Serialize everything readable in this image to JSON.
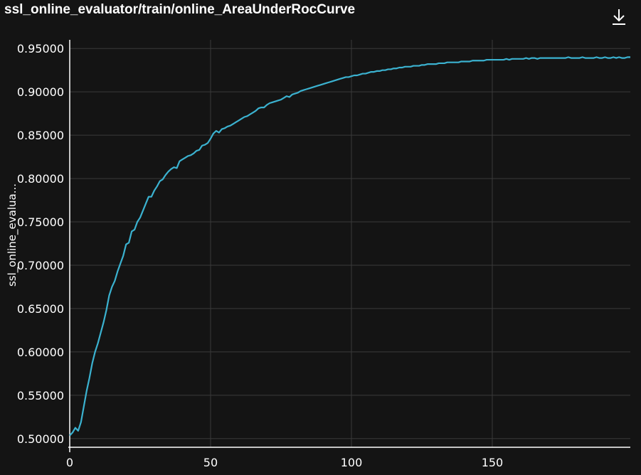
{
  "panel": {
    "title": "ssl_online_evaluator/train/online_AreaUnderRocCurve",
    "download_icon": "download-icon"
  },
  "colors": {
    "background": "#141414",
    "grid": "#3a3a3a",
    "axis": "#ffffff",
    "line": "#3bb2d0"
  },
  "chart_data": {
    "type": "line",
    "title": "ssl_online_evaluator/train/online_AreaUnderRocCurve",
    "xlabel": "",
    "ylabel": "ssl_online_evalua...",
    "xlim": [
      0,
      199
    ],
    "ylim": [
      0.49,
      0.96
    ],
    "x_ticks": [
      0,
      50,
      100,
      150
    ],
    "x_tick_labels": [
      "0",
      "50",
      "100",
      "150"
    ],
    "y_ticks": [
      0.5,
      0.55,
      0.6,
      0.65,
      0.7,
      0.75,
      0.8,
      0.85,
      0.9,
      0.95
    ],
    "y_tick_labels": [
      "0.50000",
      "0.55000",
      "0.60000",
      "0.65000",
      "0.70000",
      "0.75000",
      "0.80000",
      "0.85000",
      "0.90000",
      "0.95000"
    ],
    "grid": true,
    "series": [
      {
        "values": [
          [
            0,
            0.5035
          ],
          [
            1,
            0.507
          ],
          [
            2,
            0.5125
          ],
          [
            3,
            0.509
          ],
          [
            4,
            0.519
          ],
          [
            5,
            0.537
          ],
          [
            6,
            0.555
          ],
          [
            7,
            0.57
          ],
          [
            8,
            0.587
          ],
          [
            9,
            0.6
          ],
          [
            10,
            0.61
          ],
          [
            11,
            0.622
          ],
          [
            12,
            0.634
          ],
          [
            13,
            0.648
          ],
          [
            14,
            0.665
          ],
          [
            15,
            0.675
          ],
          [
            16,
            0.682
          ],
          [
            17,
            0.693
          ],
          [
            18,
            0.702
          ],
          [
            19,
            0.711
          ],
          [
            20,
            0.724
          ],
          [
            21,
            0.726
          ],
          [
            22,
            0.739
          ],
          [
            23,
            0.741
          ],
          [
            24,
            0.75
          ],
          [
            25,
            0.755
          ],
          [
            26,
            0.763
          ],
          [
            27,
            0.771
          ],
          [
            28,
            0.779
          ],
          [
            29,
            0.779
          ],
          [
            30,
            0.786
          ],
          [
            31,
            0.791
          ],
          [
            32,
            0.797
          ],
          [
            33,
            0.799
          ],
          [
            34,
            0.804
          ],
          [
            35,
            0.808
          ],
          [
            36,
            0.811
          ],
          [
            37,
            0.813
          ],
          [
            38,
            0.812
          ],
          [
            39,
            0.82
          ],
          [
            40,
            0.822
          ],
          [
            41,
            0.824
          ],
          [
            42,
            0.826
          ],
          [
            43,
            0.827
          ],
          [
            44,
            0.829
          ],
          [
            45,
            0.832
          ],
          [
            46,
            0.833
          ],
          [
            47,
            0.838
          ],
          [
            48,
            0.839
          ],
          [
            49,
            0.841
          ],
          [
            50,
            0.846
          ],
          [
            51,
            0.852
          ],
          [
            52,
            0.855
          ],
          [
            53,
            0.853
          ],
          [
            54,
            0.857
          ],
          [
            55,
            0.858
          ],
          [
            56,
            0.86
          ],
          [
            57,
            0.861
          ],
          [
            58,
            0.863
          ],
          [
            59,
            0.865
          ],
          [
            60,
            0.867
          ],
          [
            61,
            0.869
          ],
          [
            62,
            0.871
          ],
          [
            63,
            0.872
          ],
          [
            64,
            0.874
          ],
          [
            65,
            0.876
          ],
          [
            66,
            0.878
          ],
          [
            67,
            0.881
          ],
          [
            68,
            0.882
          ],
          [
            69,
            0.882
          ],
          [
            70,
            0.885
          ],
          [
            71,
            0.887
          ],
          [
            72,
            0.888
          ],
          [
            73,
            0.889
          ],
          [
            74,
            0.89
          ],
          [
            75,
            0.891
          ],
          [
            76,
            0.893
          ],
          [
            77,
            0.895
          ],
          [
            78,
            0.894
          ],
          [
            79,
            0.897
          ],
          [
            80,
            0.898
          ],
          [
            81,
            0.899
          ],
          [
            82,
            0.901
          ],
          [
            83,
            0.902
          ],
          [
            84,
            0.903
          ],
          [
            85,
            0.904
          ],
          [
            86,
            0.905
          ],
          [
            87,
            0.906
          ],
          [
            88,
            0.907
          ],
          [
            89,
            0.908
          ],
          [
            90,
            0.909
          ],
          [
            91,
            0.91
          ],
          [
            92,
            0.911
          ],
          [
            93,
            0.912
          ],
          [
            94,
            0.913
          ],
          [
            95,
            0.914
          ],
          [
            96,
            0.915
          ],
          [
            97,
            0.916
          ],
          [
            98,
            0.917
          ],
          [
            99,
            0.917
          ],
          [
            100,
            0.918
          ],
          [
            101,
            0.919
          ],
          [
            102,
            0.919
          ],
          [
            103,
            0.92
          ],
          [
            104,
            0.921
          ],
          [
            105,
            0.921
          ],
          [
            106,
            0.922
          ],
          [
            107,
            0.923
          ],
          [
            108,
            0.923
          ],
          [
            109,
            0.924
          ],
          [
            110,
            0.924
          ],
          [
            111,
            0.925
          ],
          [
            112,
            0.925
          ],
          [
            113,
            0.926
          ],
          [
            114,
            0.926
          ],
          [
            115,
            0.927
          ],
          [
            116,
            0.927
          ],
          [
            117,
            0.928
          ],
          [
            118,
            0.928
          ],
          [
            119,
            0.929
          ],
          [
            120,
            0.929
          ],
          [
            121,
            0.929
          ],
          [
            122,
            0.93
          ],
          [
            123,
            0.93
          ],
          [
            124,
            0.93
          ],
          [
            125,
            0.931
          ],
          [
            126,
            0.931
          ],
          [
            127,
            0.932
          ],
          [
            128,
            0.932
          ],
          [
            129,
            0.932
          ],
          [
            130,
            0.932
          ],
          [
            131,
            0.933
          ],
          [
            132,
            0.933
          ],
          [
            133,
            0.933
          ],
          [
            134,
            0.934
          ],
          [
            135,
            0.934
          ],
          [
            136,
            0.934
          ],
          [
            137,
            0.934
          ],
          [
            138,
            0.934
          ],
          [
            139,
            0.935
          ],
          [
            140,
            0.935
          ],
          [
            141,
            0.935
          ],
          [
            142,
            0.935
          ],
          [
            143,
            0.936
          ],
          [
            144,
            0.936
          ],
          [
            145,
            0.936
          ],
          [
            146,
            0.936
          ],
          [
            147,
            0.936
          ],
          [
            148,
            0.937
          ],
          [
            149,
            0.937
          ],
          [
            150,
            0.937
          ],
          [
            151,
            0.937
          ],
          [
            152,
            0.937
          ],
          [
            153,
            0.937
          ],
          [
            154,
            0.937
          ],
          [
            155,
            0.938
          ],
          [
            156,
            0.937
          ],
          [
            157,
            0.938
          ],
          [
            158,
            0.938
          ],
          [
            159,
            0.938
          ],
          [
            160,
            0.938
          ],
          [
            161,
            0.938
          ],
          [
            162,
            0.939
          ],
          [
            163,
            0.938
          ],
          [
            164,
            0.939
          ],
          [
            165,
            0.939
          ],
          [
            166,
            0.938
          ],
          [
            167,
            0.939
          ],
          [
            168,
            0.939
          ],
          [
            169,
            0.939
          ],
          [
            170,
            0.939
          ],
          [
            171,
            0.939
          ],
          [
            172,
            0.939
          ],
          [
            173,
            0.939
          ],
          [
            174,
            0.939
          ],
          [
            175,
            0.939
          ],
          [
            176,
            0.939
          ],
          [
            177,
            0.94
          ],
          [
            178,
            0.939
          ],
          [
            179,
            0.939
          ],
          [
            180,
            0.939
          ],
          [
            181,
            0.939
          ],
          [
            182,
            0.94
          ],
          [
            183,
            0.939
          ],
          [
            184,
            0.939
          ],
          [
            185,
            0.939
          ],
          [
            186,
            0.939
          ],
          [
            187,
            0.94
          ],
          [
            188,
            0.939
          ],
          [
            189,
            0.939
          ],
          [
            190,
            0.94
          ],
          [
            191,
            0.939
          ],
          [
            192,
            0.939
          ],
          [
            193,
            0.94
          ],
          [
            194,
            0.939
          ],
          [
            195,
            0.94
          ],
          [
            196,
            0.939
          ],
          [
            197,
            0.939
          ],
          [
            198,
            0.94
          ],
          [
            199,
            0.94
          ]
        ]
      }
    ]
  }
}
